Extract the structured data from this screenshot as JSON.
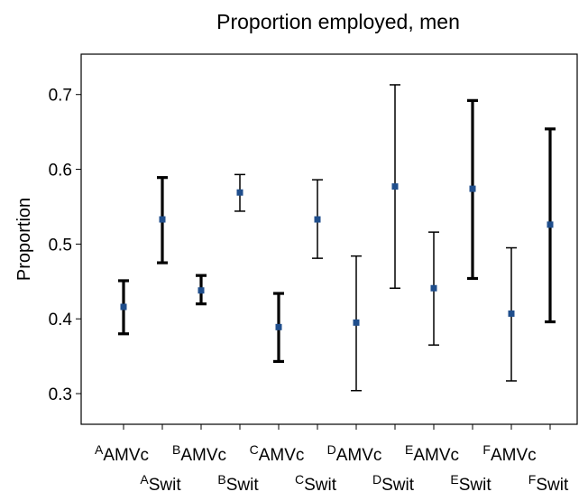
{
  "chart_data": {
    "type": "errorbar",
    "title": "Proportion employed, men",
    "y_label": "Proportion",
    "superscripts": [
      "A",
      "A",
      "B",
      "B",
      "C",
      "C",
      "D",
      "D",
      "E",
      "E",
      "F",
      "F"
    ],
    "categories": [
      "AMVc",
      "Swit",
      "AMVc",
      "Swit",
      "AMVc",
      "Swit",
      "AMVc",
      "Swit",
      "AMVc",
      "Swit",
      "AMVc",
      "Swit"
    ],
    "values": [
      0.416,
      0.533,
      0.438,
      0.569,
      0.389,
      0.533,
      0.395,
      0.577,
      0.441,
      0.574,
      0.407,
      0.526
    ],
    "lows": [
      0.38,
      0.475,
      0.42,
      0.544,
      0.343,
      0.481,
      0.304,
      0.441,
      0.365,
      0.454,
      0.317,
      0.396
    ],
    "highs": [
      0.451,
      0.589,
      0.458,
      0.593,
      0.434,
      0.586,
      0.484,
      0.713,
      0.516,
      0.692,
      0.495,
      0.654
    ],
    "bold": [
      true,
      true,
      true,
      false,
      true,
      false,
      false,
      false,
      false,
      true,
      false,
      true
    ],
    "color": "#1f4e8c",
    "ylim": [
      0.259,
      0.754
    ],
    "yticks": [
      0.3,
      0.4,
      0.5,
      0.6,
      0.7
    ]
  }
}
